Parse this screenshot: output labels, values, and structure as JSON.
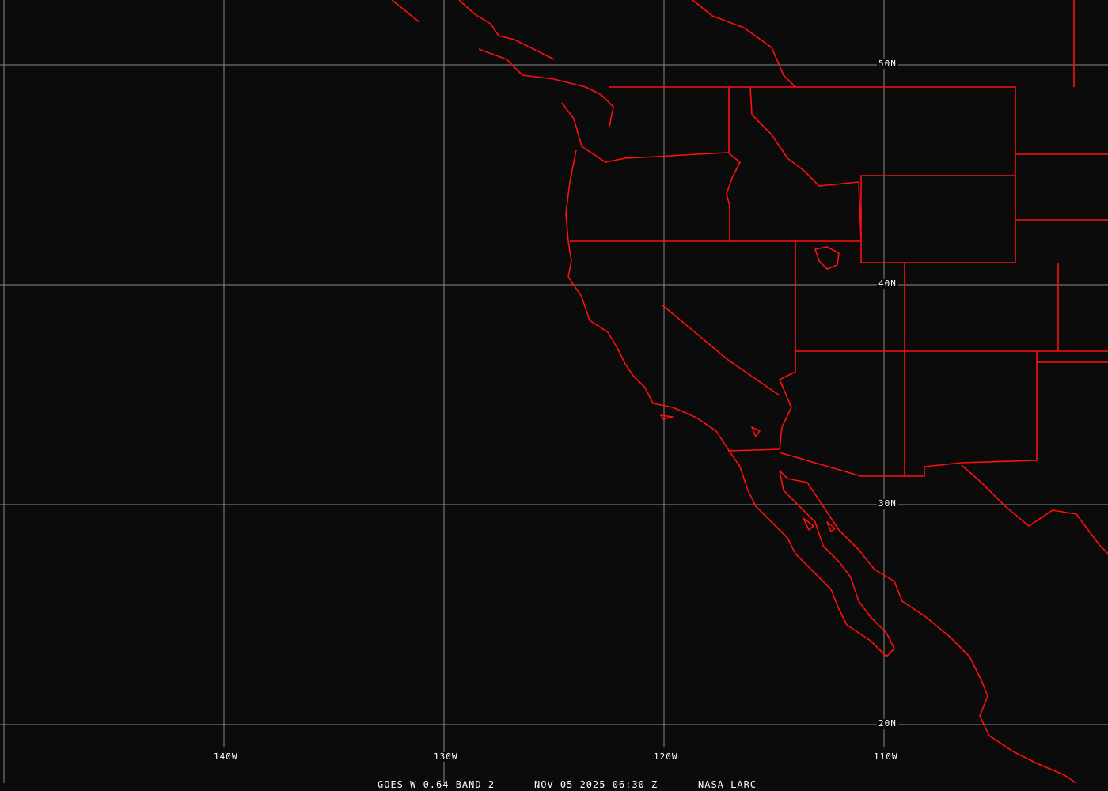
{
  "map": {
    "satellite": "GOES-W",
    "colors": {
      "borders": "#ff1010",
      "grid": "#8a8a8a",
      "background": "#0b0b0b"
    },
    "latitude_labels": [
      "50N",
      "40N",
      "30N",
      "20N"
    ],
    "longitude_labels": [
      "140W",
      "130W",
      "120W",
      "110W"
    ],
    "footer": {
      "product": "GOES-W 0.64 BAND 2",
      "datetime": "NOV 05 2025 06:30 Z",
      "source": "NASA LARC"
    }
  }
}
